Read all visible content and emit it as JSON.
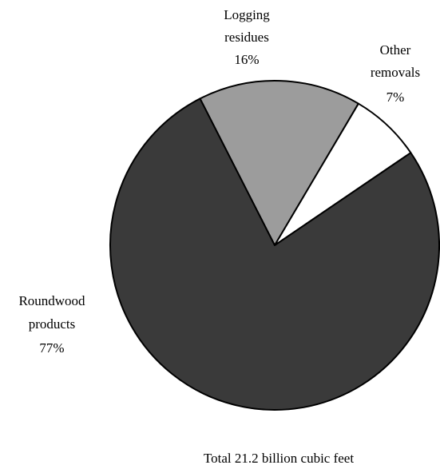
{
  "chart_data": {
    "type": "pie",
    "slices": [
      {
        "label_lines": [
          "Logging",
          "residues"
        ],
        "value_label": "16%",
        "value": 16,
        "color": "#9c9c9c"
      },
      {
        "label_lines": [
          "Other",
          "removals"
        ],
        "value_label": "7%",
        "value": 7,
        "color": "#ffffff"
      },
      {
        "label_lines": [
          "Roundwood",
          "products"
        ],
        "value_label": "77%",
        "value": 77,
        "color": "#3a3a3a"
      }
    ],
    "start_direction": "clockwise from about 10 o'clock",
    "outline_color": "#000000",
    "note": "Total 21.2 billion cubic feet"
  }
}
